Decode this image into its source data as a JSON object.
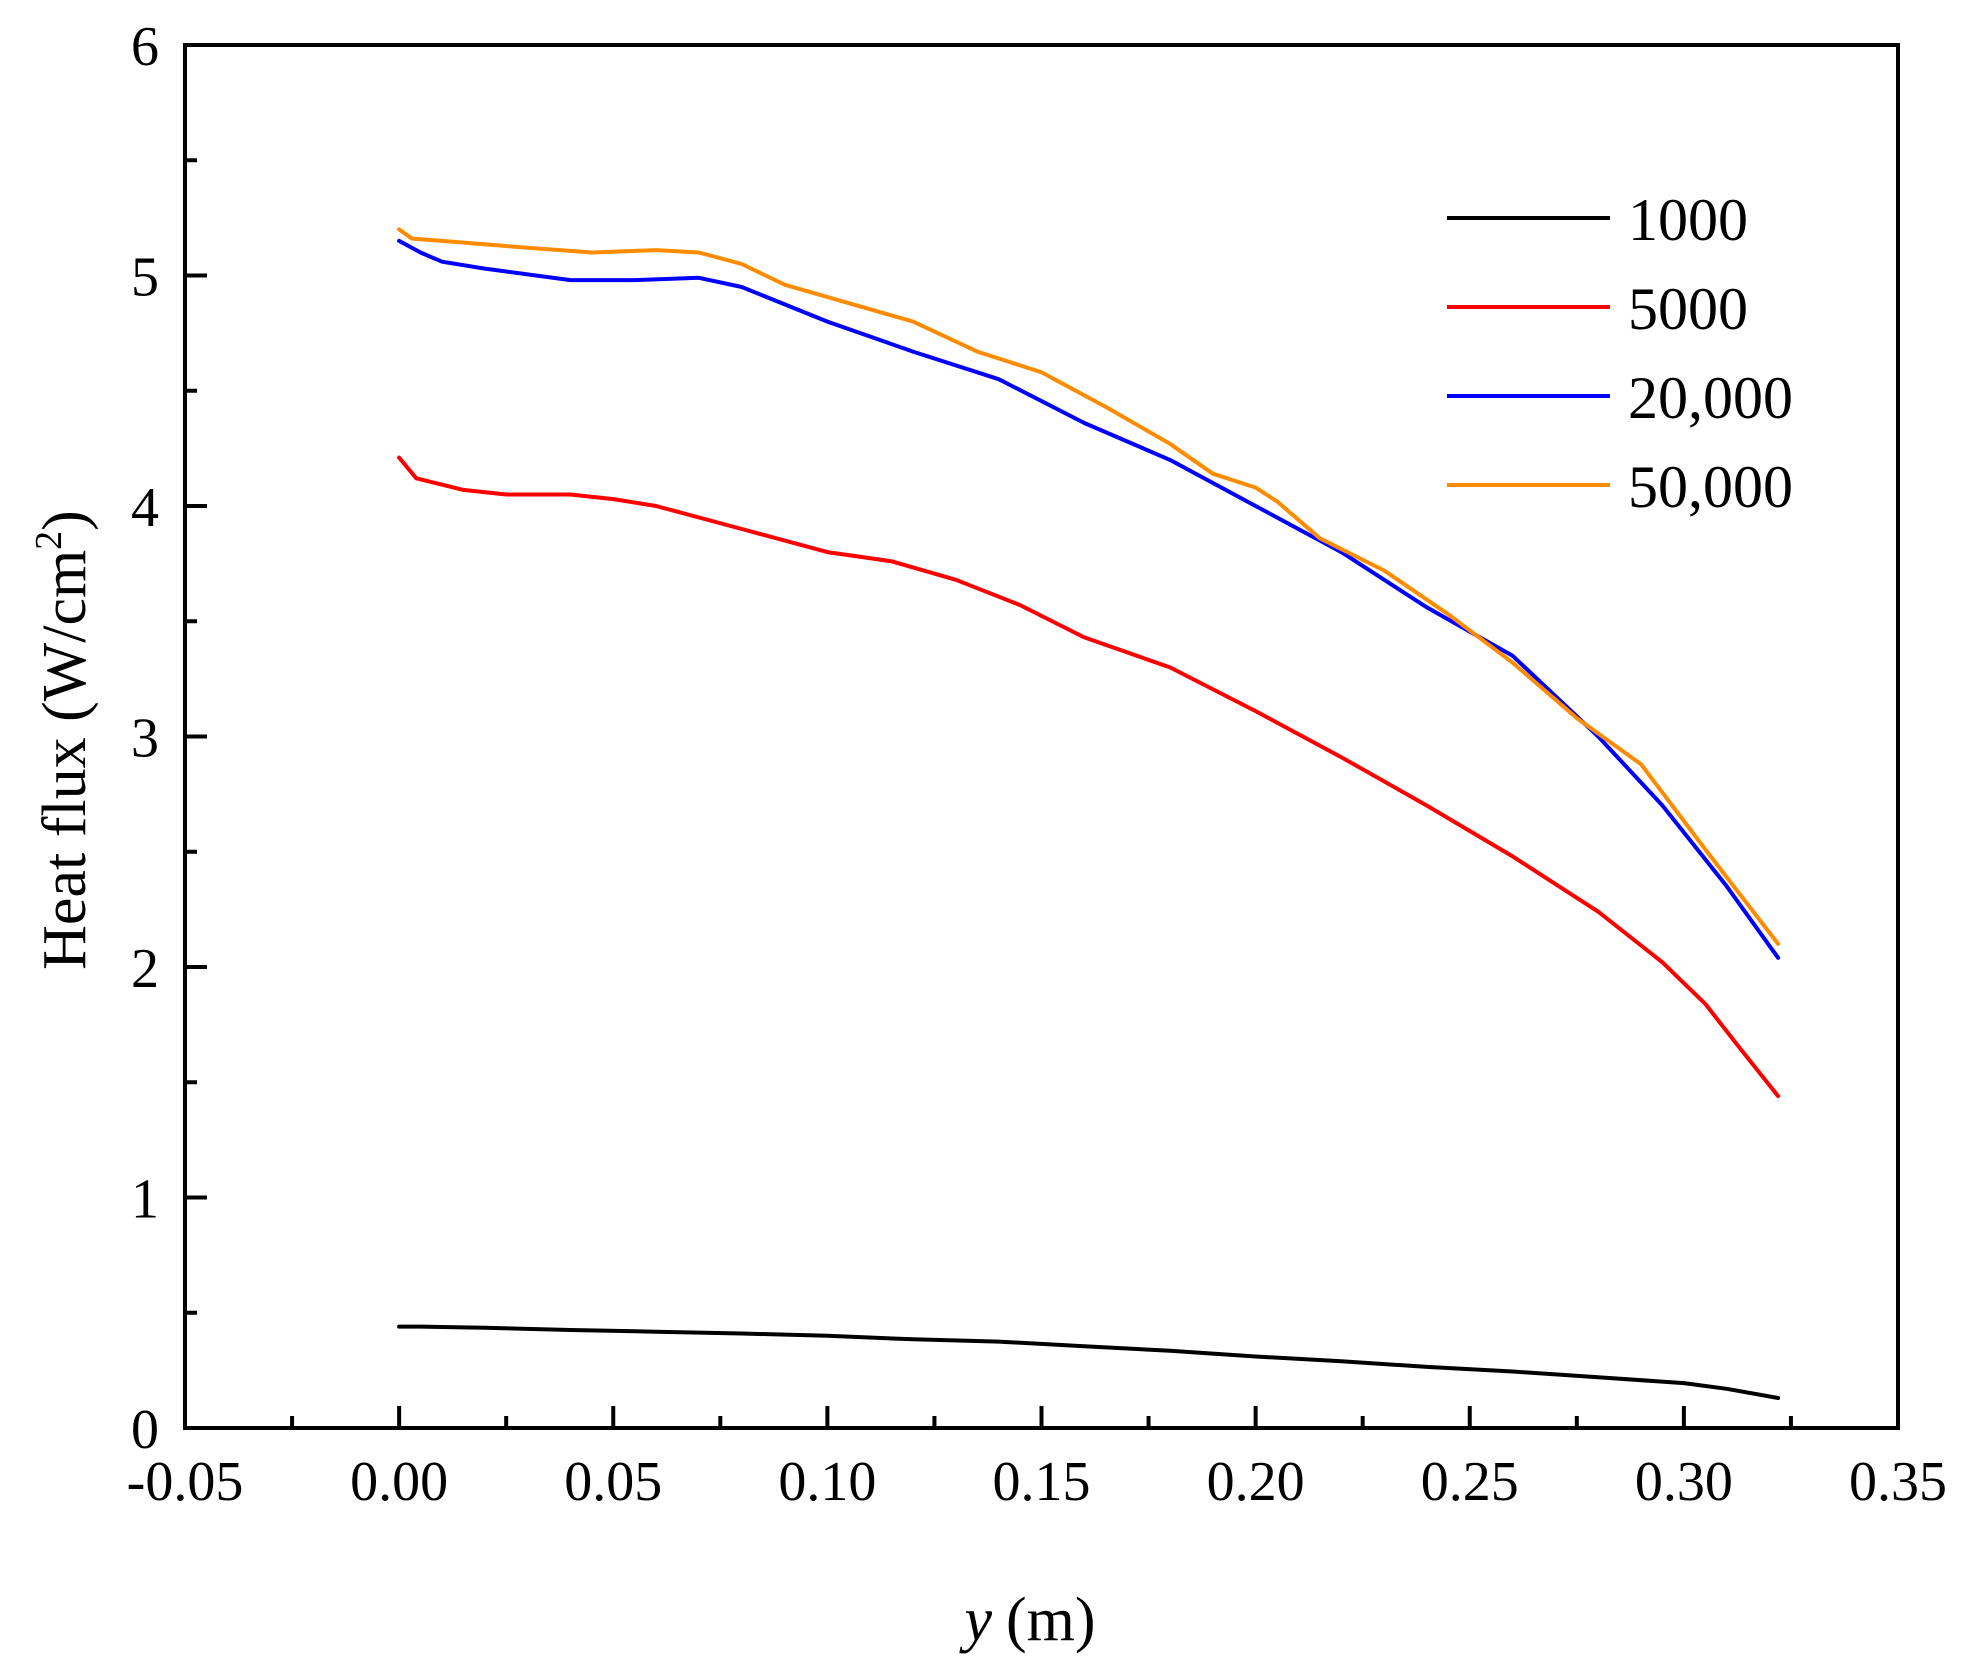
{
  "chart_data": {
    "type": "line",
    "title": "",
    "xlabel": {
      "var": "y",
      "unit": "(m)"
    },
    "ylabel": {
      "base": "Heat flux (W/cm",
      "sup": "2",
      "close": ")"
    },
    "xlim": [
      -0.05,
      0.35
    ],
    "ylim": [
      0,
      6
    ],
    "x_ticks": [
      -0.05,
      0.0,
      0.05,
      0.1,
      0.15,
      0.2,
      0.25,
      0.3,
      0.35
    ],
    "x_tick_labels": [
      "-0.05",
      "0.00",
      "0.05",
      "0.10",
      "0.15",
      "0.20",
      "0.25",
      "0.30",
      "0.35"
    ],
    "x_minor_ticks": [
      -0.025,
      0.025,
      0.075,
      0.125,
      0.175,
      0.225,
      0.275,
      0.325
    ],
    "y_ticks": [
      0,
      1,
      2,
      3,
      4,
      5,
      6
    ],
    "y_tick_labels": [
      "0",
      "1",
      "2",
      "3",
      "4",
      "5",
      "6"
    ],
    "y_minor_ticks": [
      0.5,
      1.5,
      2.5,
      3.5,
      4.5,
      5.5
    ],
    "grid": false,
    "legend_position": "top-right",
    "series": [
      {
        "name": "1000",
        "color": "#000000",
        "points": [
          [
            0.0,
            0.44
          ],
          [
            0.005,
            0.44
          ],
          [
            0.02,
            0.435
          ],
          [
            0.04,
            0.425
          ],
          [
            0.06,
            0.418
          ],
          [
            0.08,
            0.41
          ],
          [
            0.1,
            0.4
          ],
          [
            0.12,
            0.385
          ],
          [
            0.14,
            0.375
          ],
          [
            0.16,
            0.355
          ],
          [
            0.18,
            0.335
          ],
          [
            0.2,
            0.31
          ],
          [
            0.22,
            0.29
          ],
          [
            0.24,
            0.265
          ],
          [
            0.26,
            0.245
          ],
          [
            0.28,
            0.22
          ],
          [
            0.3,
            0.195
          ],
          [
            0.31,
            0.17
          ],
          [
            0.322,
            0.13
          ]
        ]
      },
      {
        "name": "5000",
        "color": "#ff0000",
        "points": [
          [
            0.0,
            4.21
          ],
          [
            0.004,
            4.12
          ],
          [
            0.015,
            4.07
          ],
          [
            0.025,
            4.05
          ],
          [
            0.04,
            4.05
          ],
          [
            0.05,
            4.03
          ],
          [
            0.06,
            4.0
          ],
          [
            0.08,
            3.9
          ],
          [
            0.1,
            3.8
          ],
          [
            0.115,
            3.76
          ],
          [
            0.13,
            3.68
          ],
          [
            0.145,
            3.57
          ],
          [
            0.16,
            3.43
          ],
          [
            0.18,
            3.3
          ],
          [
            0.2,
            3.11
          ],
          [
            0.22,
            2.91
          ],
          [
            0.24,
            2.7
          ],
          [
            0.26,
            2.48
          ],
          [
            0.28,
            2.24
          ],
          [
            0.295,
            2.02
          ],
          [
            0.305,
            1.84
          ],
          [
            0.313,
            1.65
          ],
          [
            0.322,
            1.44
          ]
        ]
      },
      {
        "name": "20,000",
        "color": "#0000ff",
        "points": [
          [
            0.0,
            5.15
          ],
          [
            0.005,
            5.1
          ],
          [
            0.01,
            5.06
          ],
          [
            0.02,
            5.03
          ],
          [
            0.04,
            4.98
          ],
          [
            0.055,
            4.98
          ],
          [
            0.07,
            4.99
          ],
          [
            0.08,
            4.95
          ],
          [
            0.1,
            4.8
          ],
          [
            0.12,
            4.67
          ],
          [
            0.14,
            4.55
          ],
          [
            0.16,
            4.36
          ],
          [
            0.18,
            4.2
          ],
          [
            0.2,
            4.0
          ],
          [
            0.22,
            3.8
          ],
          [
            0.24,
            3.56
          ],
          [
            0.26,
            3.35
          ],
          [
            0.28,
            3.0
          ],
          [
            0.295,
            2.7
          ],
          [
            0.31,
            2.35
          ],
          [
            0.322,
            2.04
          ]
        ]
      },
      {
        "name": "50,000",
        "color": "#ff8c00",
        "points": [
          [
            0.0,
            5.2
          ],
          [
            0.003,
            5.16
          ],
          [
            0.01,
            5.15
          ],
          [
            0.03,
            5.12
          ],
          [
            0.045,
            5.1
          ],
          [
            0.06,
            5.11
          ],
          [
            0.07,
            5.1
          ],
          [
            0.08,
            5.05
          ],
          [
            0.09,
            4.96
          ],
          [
            0.105,
            4.88
          ],
          [
            0.12,
            4.8
          ],
          [
            0.135,
            4.67
          ],
          [
            0.15,
            4.58
          ],
          [
            0.165,
            4.43
          ],
          [
            0.18,
            4.27
          ],
          [
            0.19,
            4.14
          ],
          [
            0.2,
            4.08
          ],
          [
            0.205,
            4.02
          ],
          [
            0.215,
            3.86
          ],
          [
            0.23,
            3.72
          ],
          [
            0.245,
            3.53
          ],
          [
            0.26,
            3.32
          ],
          [
            0.275,
            3.08
          ],
          [
            0.29,
            2.88
          ],
          [
            0.305,
            2.51
          ],
          [
            0.322,
            2.1
          ]
        ]
      }
    ]
  }
}
